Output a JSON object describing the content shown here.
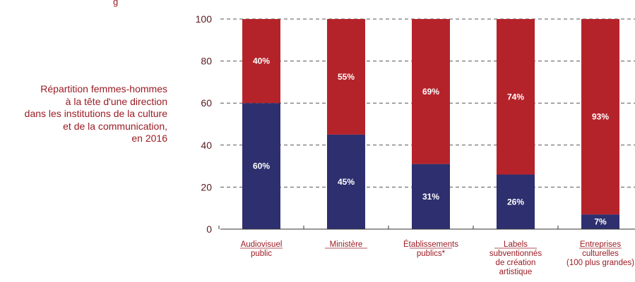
{
  "top_caption": "g",
  "side_title": {
    "lines": [
      "Répartition femmes-hommes",
      "à la tête d'une direction",
      "dans les institutions de la culture",
      "et de la communication,",
      "en 2016"
    ]
  },
  "colors": {
    "men": "#b5232a",
    "women": "#2e2f6e",
    "axis": "#333333",
    "label": "#9b1c24"
  },
  "chart_data": {
    "type": "bar",
    "stacked": true,
    "ylim": [
      0,
      100
    ],
    "yticks": [
      "0",
      "20",
      "40",
      "60",
      "80",
      "100"
    ],
    "grid": true,
    "categories": [
      [
        "Audiovisuel",
        "public"
      ],
      [
        "Ministère"
      ],
      [
        "Établissements",
        "publics*"
      ],
      [
        "Labels",
        "subventionnés",
        "de création",
        "artistique"
      ],
      [
        "Entreprises",
        "culturelles",
        "(100 plus grandes)"
      ]
    ],
    "series": [
      {
        "values": [
          60,
          45,
          31,
          26,
          7
        ],
        "labels": [
          "60%",
          "45%",
          "31%",
          "26%",
          "7%"
        ],
        "color_key": "women"
      },
      {
        "values": [
          40,
          55,
          69,
          74,
          93
        ],
        "labels": [
          "40%",
          "55%",
          "69%",
          "74%",
          "93%"
        ],
        "color_key": "men"
      }
    ]
  }
}
